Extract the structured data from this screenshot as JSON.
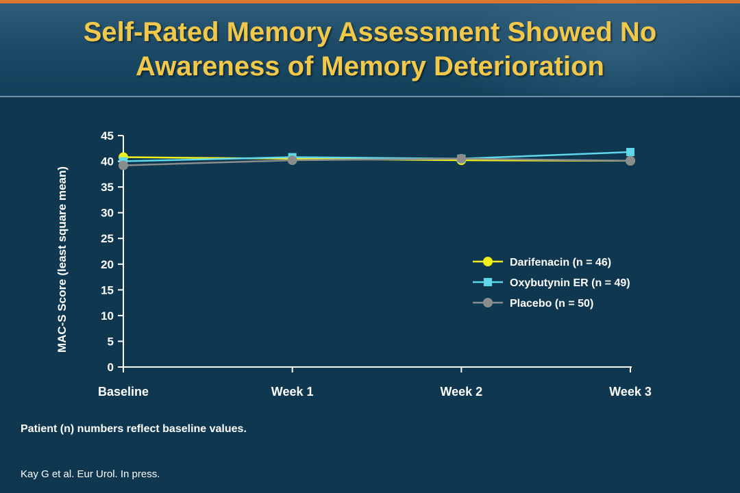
{
  "slide": {
    "title_line1": "Self-Rated Memory Assessment Showed No",
    "title_line2": "Awareness of Memory Deterioration",
    "footnote": "Patient (n) numbers reflect baseline values.",
    "citation": "Kay G et al. Eur Urol. In press."
  },
  "colors": {
    "title": "#f2c84b",
    "background": "#0f3850",
    "axis": "#ffffff"
  },
  "chart_data": {
    "type": "line",
    "title": "",
    "xlabel": "",
    "ylabel": "MAC-S Score (least square mean)",
    "categories": [
      "Baseline",
      "Week 1",
      "Week 2",
      "Week 3"
    ],
    "ylim": [
      0,
      45
    ],
    "yticks": [
      0,
      5,
      10,
      15,
      20,
      25,
      30,
      35,
      40,
      45
    ],
    "grid": false,
    "legend_position": "right",
    "series": [
      {
        "name": "Darifenacin (n = 46)",
        "values": [
          40.8,
          40.5,
          40.2,
          40.1
        ],
        "color": "#f2ee1b",
        "marker": "circle"
      },
      {
        "name": "Oxybutynin ER (n = 49)",
        "values": [
          40.0,
          40.8,
          40.5,
          41.8
        ],
        "color": "#5fd8ec",
        "marker": "square"
      },
      {
        "name": "Placebo (n = 50)",
        "values": [
          39.2,
          40.2,
          40.5,
          40.1
        ],
        "color": "#8a8d8c",
        "marker": "circle"
      }
    ]
  }
}
